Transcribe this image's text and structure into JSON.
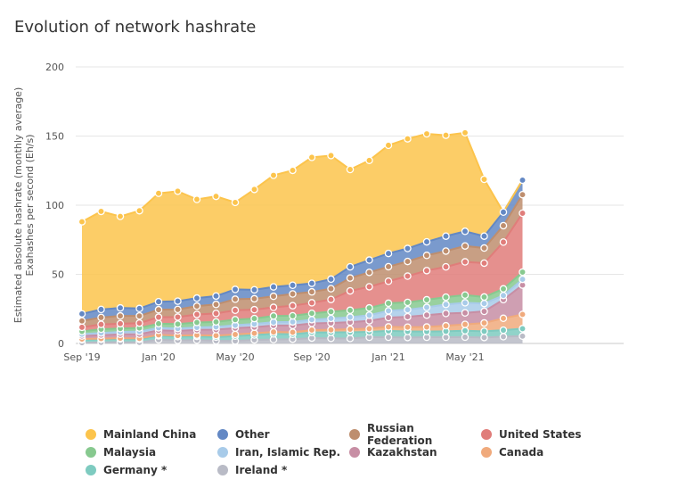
{
  "chart_data": {
    "type": "area",
    "stacked": true,
    "title": "Evolution of network hashrate",
    "ylabel_line1": "Estimated absolute hashrate (monthly average)",
    "ylabel_line2": "Exahashes per second (Eh/s)",
    "xlabel": "",
    "ylim": [
      0,
      200
    ],
    "y_ticks": [
      0,
      50,
      100,
      150,
      200
    ],
    "x_tick_labels": [
      {
        "index": 0,
        "label": "Sep '19"
      },
      {
        "index": 4,
        "label": "Jan '20"
      },
      {
        "index": 8,
        "label": "May '20"
      },
      {
        "index": 12,
        "label": "Sep '20"
      },
      {
        "index": 16,
        "label": "Jan '21"
      },
      {
        "index": 20,
        "label": "May '21"
      }
    ],
    "grid": true,
    "legend_position": "bottom",
    "x": [
      "2019-09",
      "2019-10",
      "2019-11",
      "2019-12",
      "2020-01",
      "2020-02",
      "2020-03",
      "2020-04",
      "2020-05",
      "2020-06",
      "2020-07",
      "2020-08",
      "2020-09",
      "2020-10",
      "2020-11",
      "2020-12",
      "2021-01",
      "2021-02",
      "2021-03",
      "2021-04",
      "2021-05",
      "2021-06",
      "2021-07",
      "2021-08"
    ],
    "stack_order": [
      "Ireland *",
      "Germany *",
      "Canada",
      "Kazakhstan",
      "Iran, Islamic Rep.",
      "Malaysia",
      "United States",
      "Russian Federation",
      "Other",
      "Mainland China"
    ],
    "series": [
      {
        "name": "Mainland China",
        "color": "#fcc44c",
        "values": [
          66.6,
          70.9,
          66.2,
          70.7,
          78.4,
          79.5,
          71.4,
          72.1,
          62.9,
          72.6,
          80.7,
          83.1,
          91.1,
          89.4,
          70.4,
          72.1,
          78.2,
          79.3,
          78.1,
          73.0,
          71.3,
          41.1,
          0,
          0
        ]
      },
      {
        "name": "Other",
        "color": "#6388c4",
        "values": [
          5.1,
          5.8,
          5.8,
          5.4,
          5.8,
          6.0,
          5.8,
          6.1,
          7.1,
          6.5,
          6.8,
          6.3,
          6.2,
          6.9,
          8.1,
          8.9,
          9.6,
          9.4,
          9.8,
          10.8,
          10.6,
          8.6,
          9.8,
          10.5
        ]
      },
      {
        "name": "Russian Federation",
        "color": "#be8e6e",
        "values": [
          4.6,
          5.0,
          5.6,
          5.2,
          5.4,
          5.5,
          6.0,
          6.5,
          8.0,
          7.9,
          8.0,
          8.5,
          7.9,
          7.8,
          9.3,
          10.4,
          10.5,
          10.6,
          11.0,
          11.4,
          11.5,
          10.9,
          11.9,
          13.4
        ]
      },
      {
        "name": "United States",
        "color": "#e07d7a",
        "values": [
          3.0,
          3.5,
          3.5,
          3.5,
          4.7,
          5.1,
          5.8,
          6.1,
          6.8,
          6.4,
          6.2,
          7.3,
          7.6,
          8.8,
          14.0,
          15.3,
          15.9,
          19.0,
          21.1,
          21.9,
          24.0,
          24.5,
          33.8,
          42.6
        ]
      },
      {
        "name": "Malaysia",
        "color": "#87c98f",
        "values": [
          2.0,
          2.7,
          2.5,
          2.6,
          3.0,
          3.2,
          3.6,
          3.6,
          4.0,
          3.9,
          4.5,
          4.4,
          4.6,
          4.9,
          5.0,
          5.3,
          5.5,
          5.3,
          5.5,
          5.3,
          5.6,
          4.7,
          4.8,
          5.2
        ]
      },
      {
        "name": "Iran, Islamic Rep.",
        "color": "#a8cbe9",
        "values": [
          1.3,
          1.6,
          1.7,
          1.9,
          1.8,
          1.7,
          1.8,
          2.0,
          2.1,
          2.3,
          2.4,
          2.6,
          2.7,
          3.3,
          3.6,
          4.0,
          4.9,
          5.1,
          5.6,
          6.5,
          7.3,
          5.7,
          3.0,
          4.2
        ]
      },
      {
        "name": "Kazakhstan",
        "color": "#c78ea4",
        "values": [
          2.2,
          2.5,
          2.8,
          3.1,
          3.3,
          3.4,
          3.8,
          4.3,
          4.6,
          4.4,
          4.7,
          4.9,
          4.8,
          4.9,
          5.1,
          5.7,
          6.7,
          7.5,
          8.6,
          8.9,
          8.3,
          8.4,
          13.5,
          21.2
        ]
      },
      {
        "name": "Canada",
        "color": "#f0aa7c",
        "values": [
          0.5,
          0.5,
          0.5,
          0.6,
          0.7,
          0.8,
          0.9,
          1.1,
          1.2,
          1.3,
          1.4,
          1.5,
          1.7,
          1.9,
          2.2,
          2.3,
          2.9,
          3.1,
          3.3,
          4.0,
          4.6,
          6.0,
          8.6,
          10.3
        ]
      },
      {
        "name": "Germany *",
        "color": "#7ecbc0",
        "values": [
          2.2,
          2.2,
          2.4,
          2.2,
          2.8,
          2.7,
          2.7,
          2.7,
          3.5,
          3.5,
          4.1,
          3.5,
          4.1,
          4.3,
          4.5,
          3.9,
          4.6,
          4.4,
          4.1,
          4.3,
          4.6,
          4.5,
          4.7,
          5.4
        ]
      },
      {
        "name": "Ireland *",
        "color": "#b9bbc6",
        "values": [
          0.5,
          0.8,
          0.9,
          0.8,
          2.7,
          2.2,
          2.4,
          1.9,
          1.8,
          2.6,
          2.8,
          3.1,
          3.9,
          3.7,
          3.6,
          4.5,
          4.5,
          4.3,
          4.5,
          4.5,
          4.6,
          4.3,
          4.9,
          5.3
        ]
      }
    ]
  },
  "legend": [
    {
      "name": "Mainland China",
      "color": "#fcc44c"
    },
    {
      "name": "Other",
      "color": "#6388c4"
    },
    {
      "name": "Russian Federation",
      "color": "#be8e6e"
    },
    {
      "name": "United States",
      "color": "#e07d7a"
    },
    {
      "name": "Malaysia",
      "color": "#87c98f"
    },
    {
      "name": "Iran, Islamic Rep.",
      "color": "#a8cbe9"
    },
    {
      "name": "Kazakhstan",
      "color": "#c78ea4"
    },
    {
      "name": "Canada",
      "color": "#f0aa7c"
    },
    {
      "name": "Germany *",
      "color": "#7ecbc0"
    },
    {
      "name": "Ireland *",
      "color": "#b9bbc6"
    }
  ]
}
